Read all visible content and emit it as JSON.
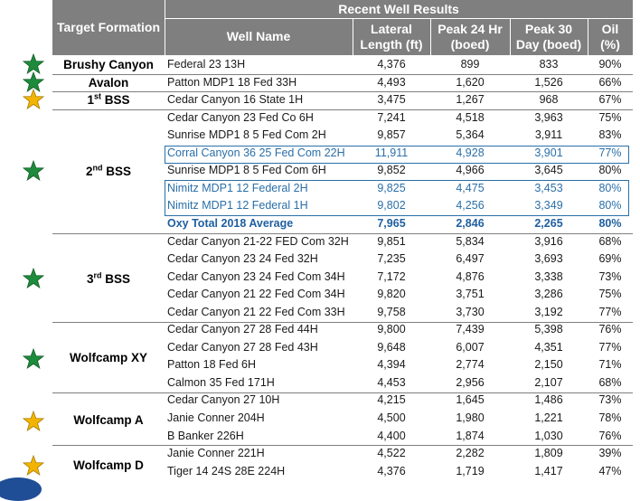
{
  "header": {
    "target_formation": "Target Formation",
    "recent_well_results": "Recent Well Results",
    "well_name": "Well Name",
    "lateral_line1": "Lateral",
    "lateral_line2": "Length (ft)",
    "peak24_line1": "Peak 24 Hr",
    "peak24_line2": "(boed)",
    "peak30_line1": "Peak 30",
    "peak30_line2": "Day (boed)",
    "oil_line1": "Oil",
    "oil_line2": "(%)"
  },
  "groups": [
    {
      "formation": "Brushy Canyon",
      "sup": "",
      "star": "green"
    },
    {
      "formation": "Avalon",
      "sup": "",
      "star": "green"
    },
    {
      "formation": "1",
      "sup": "st",
      "suffix": " BSS",
      "star": "gold"
    },
    {
      "formation": "2",
      "sup": "nd",
      "suffix": " BSS",
      "star": "green"
    },
    {
      "formation": "3",
      "sup": "rd",
      "suffix": " BSS",
      "star": "green"
    },
    {
      "formation": "Wolfcamp XY",
      "sup": "",
      "star": "green"
    },
    {
      "formation": "Wolfcamp A",
      "sup": "",
      "star": "gold"
    },
    {
      "formation": "Wolfcamp D",
      "sup": "",
      "star": "gold"
    }
  ],
  "rows": [
    {
      "name": "Federal 23 13H",
      "lateral": "4,376",
      "peak24": "899",
      "peak30": "833",
      "oil": "90%"
    },
    {
      "name": "Patton MDP1 18 Fed 33H",
      "lateral": "4,493",
      "peak24": "1,620",
      "peak30": "1,526",
      "oil": "66%"
    },
    {
      "name": "Cedar Canyon 16 State 1H",
      "lateral": "3,475",
      "peak24": "1,267",
      "peak30": "968",
      "oil": "67%"
    },
    {
      "name": "Cedar Canyon 23 Fed Co 6H",
      "lateral": "7,241",
      "peak24": "4,518",
      "peak30": "3,963",
      "oil": "75%"
    },
    {
      "name": "Sunrise MDP1 8 5 Fed Com 2H",
      "lateral": "9,857",
      "peak24": "5,364",
      "peak30": "3,911",
      "oil": "83%"
    },
    {
      "name": "Corral Canyon 36 25 Fed Com 22H",
      "lateral": "11,911",
      "peak24": "4,928",
      "peak30": "3,901",
      "oil": "77%"
    },
    {
      "name": "Sunrise MDP1 8 5 Fed Com 6H",
      "lateral": "9,852",
      "peak24": "4,966",
      "peak30": "3,645",
      "oil": "80%"
    },
    {
      "name": "Nimitz MDP1 12 Federal 2H",
      "lateral": "9,825",
      "peak24": "4,475",
      "peak30": "3,453",
      "oil": "80%"
    },
    {
      "name": "Nimitz MDP1 12 Federal 1H",
      "lateral": "9,802",
      "peak24": "4,256",
      "peak30": "3,349",
      "oil": "80%"
    },
    {
      "name": "Oxy Total 2018 Average",
      "lateral": "7,965",
      "peak24": "2,846",
      "peak30": "2,265",
      "oil": "80%"
    },
    {
      "name": "Cedar Canyon 21-22 FED Com 32H",
      "lateral": "9,851",
      "peak24": "5,834",
      "peak30": "3,916",
      "oil": "68%"
    },
    {
      "name": "Cedar Canyon 23 24 Fed  32H",
      "lateral": "7,235",
      "peak24": "6,497",
      "peak30": "3,693",
      "oil": "69%"
    },
    {
      "name": "Cedar Canyon 23 24 Fed Com 34H",
      "lateral": "7,172",
      "peak24": "4,876",
      "peak30": "3,338",
      "oil": "73%"
    },
    {
      "name": "Cedar Canyon 21 22 Fed Com 34H",
      "lateral": "9,820",
      "peak24": "3,751",
      "peak30": "3,286",
      "oil": "75%"
    },
    {
      "name": "Cedar Canyon 21 22 Fed Com 33H",
      "lateral": "9,758",
      "peak24": "3,730",
      "peak30": "3,192",
      "oil": "77%"
    },
    {
      "name": "Cedar Canyon 27 28 Fed 44H",
      "lateral": "9,800",
      "peak24": "7,439",
      "peak30": "5,398",
      "oil": "76%"
    },
    {
      "name": "Cedar Canyon 27 28 Fed 43H",
      "lateral": "9,648",
      "peak24": "6,007",
      "peak30": "4,351",
      "oil": "77%"
    },
    {
      "name": "Patton 18 Fed 6H",
      "lateral": "4,394",
      "peak24": "2,774",
      "peak30": "2,150",
      "oil": "71%"
    },
    {
      "name": "Calmon 35 Fed 171H",
      "lateral": "4,453",
      "peak24": "2,956",
      "peak30": "2,107",
      "oil": "68%"
    },
    {
      "name": "Cedar Canyon 27 10H",
      "lateral": "4,215",
      "peak24": "1,645",
      "peak30": "1,486",
      "oil": "73%"
    },
    {
      "name": "Janie Conner 204H",
      "lateral": "4,500",
      "peak24": "1,980",
      "peak30": "1,221",
      "oil": "78%"
    },
    {
      "name": "B Banker 226H",
      "lateral": "4,400",
      "peak24": "1,874",
      "peak30": "1,030",
      "oil": "76%"
    },
    {
      "name": "Janie Conner 221H",
      "lateral": "4,522",
      "peak24": "2,282",
      "peak30": "1,809",
      "oil": "39%"
    },
    {
      "name": "Tiger 14 24S 28E 224H",
      "lateral": "4,376",
      "peak24": "1,719",
      "peak30": "1,417",
      "oil": "47%"
    }
  ],
  "colors": {
    "header_bg": "#7f7f7f",
    "highlight": "#2a6fa8",
    "oxy_total": "#1f5f9f",
    "star_green": "#1e8a3c",
    "star_gold": "#f2b400"
  }
}
